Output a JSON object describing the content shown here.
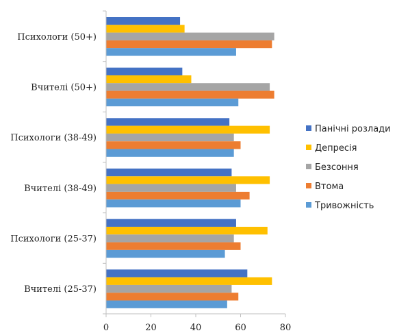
{
  "chart_data": {
    "type": "bar",
    "orientation": "horizontal",
    "title": "",
    "xlabel": "",
    "ylabel": "",
    "xlim": [
      0,
      80
    ],
    "xticks": [
      0,
      20,
      40,
      60,
      80
    ],
    "grid": false,
    "legend_position": "right",
    "categories": [
      "Психологи (50+)",
      "Вчителі (50+)",
      "Психологи (38-49)",
      "Вчителі (38-49)",
      "Психологи (25-37)",
      "Вчителі (25-37)"
    ],
    "series": [
      {
        "name": "Панічні розлади",
        "color": "#4472C4",
        "values": [
          33,
          34,
          55,
          56,
          58,
          63
        ]
      },
      {
        "name": "Депресія",
        "color": "#FFC000",
        "values": [
          35,
          38,
          73,
          73,
          72,
          74
        ]
      },
      {
        "name": "Безсоння",
        "color": "#A5A5A5",
        "values": [
          75,
          73,
          57,
          58,
          57,
          56
        ]
      },
      {
        "name": "Втома",
        "color": "#ED7D31",
        "values": [
          74,
          75,
          60,
          64,
          60,
          59
        ]
      },
      {
        "name": "Тривожність",
        "color": "#5B9BD5",
        "values": [
          58,
          59,
          57,
          60,
          53,
          54
        ]
      }
    ]
  }
}
